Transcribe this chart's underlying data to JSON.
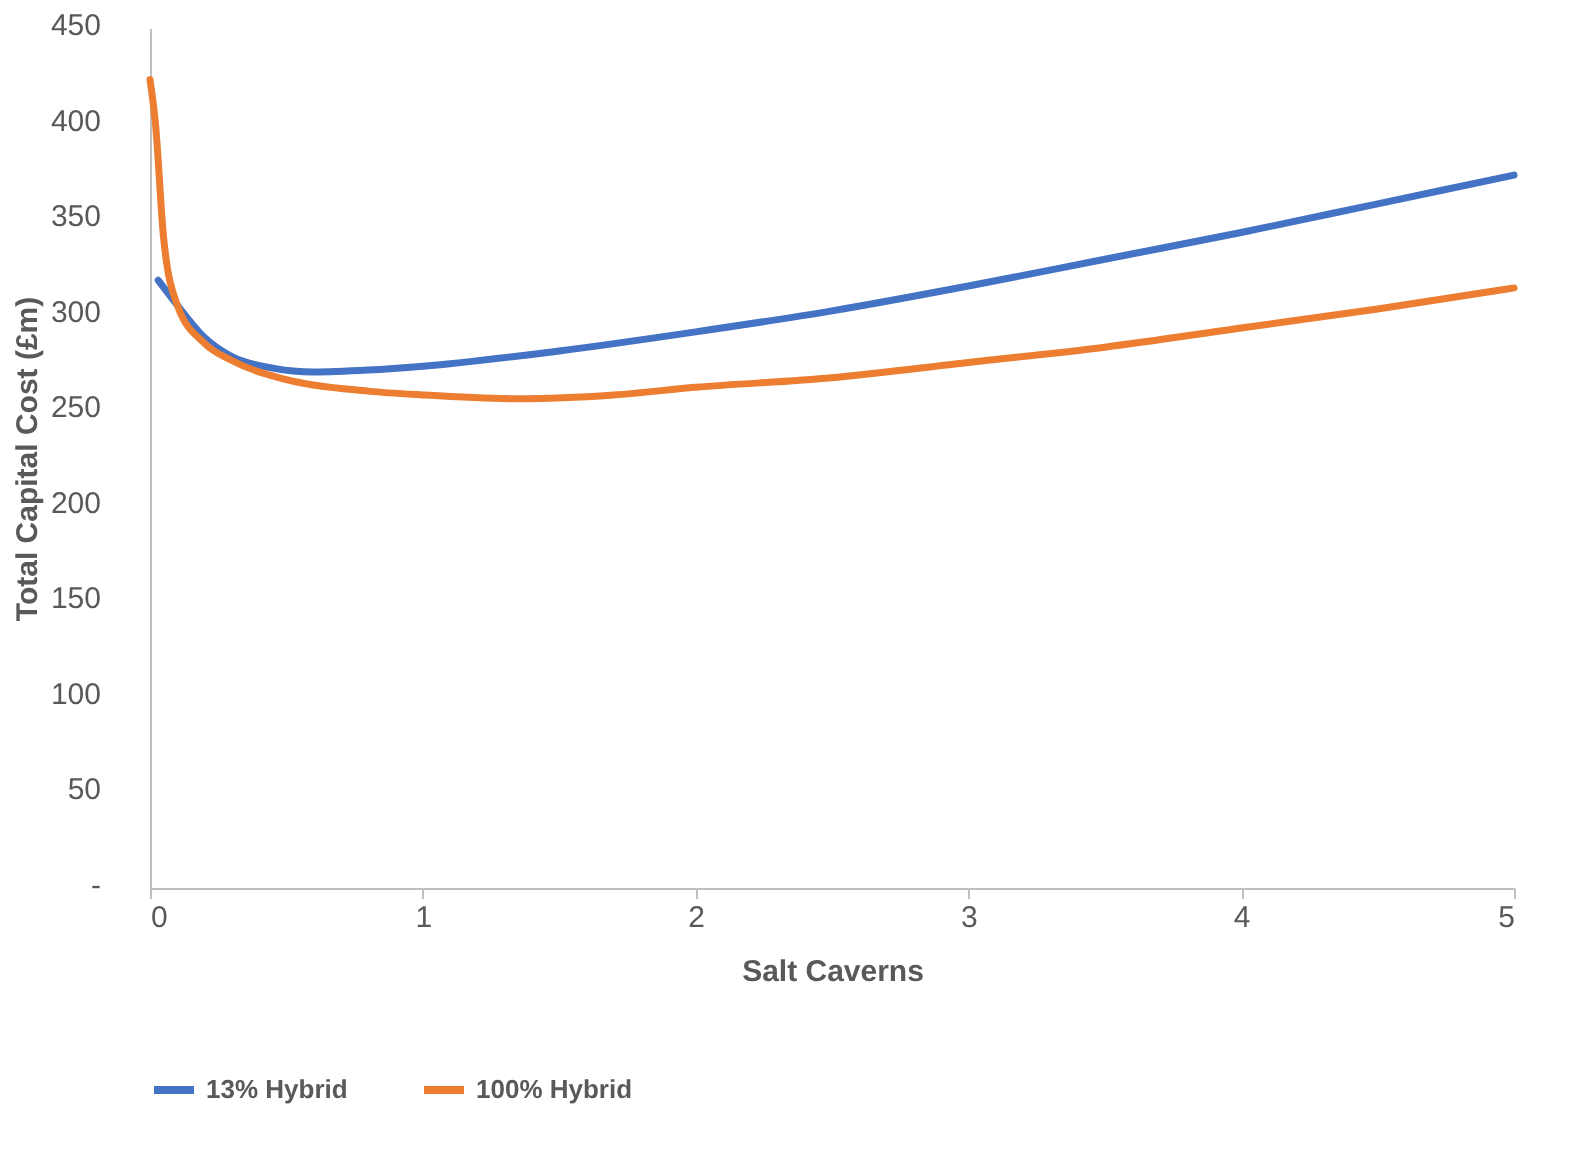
{
  "chart_data": {
    "type": "line",
    "xlabel": "Salt Caverns",
    "ylabel": "Total Capital Cost (£m)",
    "xlim": [
      0,
      5
    ],
    "xticks": [
      0,
      1,
      2,
      3,
      4,
      5
    ],
    "ylim": [
      0,
      450
    ],
    "yticks": [
      {
        "value": 0,
        "label": "-"
      },
      50,
      100,
      150,
      200,
      250,
      300,
      350,
      400,
      450
    ],
    "grid": false,
    "legend": "bottom",
    "marker": "none",
    "line_style": "solid",
    "series": [
      {
        "name": "13% Hybrid",
        "color": "#4472c4",
        "x": [
          0.03,
          0.1,
          0.2,
          0.3,
          0.45,
          0.6,
          0.8,
          1.0,
          1.5,
          2.0,
          2.5,
          3.0,
          3.5,
          4.0,
          4.5,
          5.0
        ],
        "values": [
          318,
          305,
          288,
          278,
          272,
          270,
          271,
          273,
          281,
          291,
          302,
          315,
          329,
          343,
          358,
          373
        ]
      },
      {
        "name": "100% Hybrid",
        "color": "#ed7d31",
        "x": [
          0.0,
          0.02,
          0.05,
          0.1,
          0.2,
          0.3,
          0.5,
          0.8,
          1.0,
          1.35,
          1.7,
          2.0,
          2.5,
          3.0,
          3.5,
          4.0,
          4.5,
          5.0
        ],
        "values": [
          423,
          400,
          340,
          305,
          285,
          276,
          266,
          260,
          258,
          256,
          258,
          262,
          267,
          275,
          283,
          293,
          303,
          314
        ]
      }
    ]
  }
}
